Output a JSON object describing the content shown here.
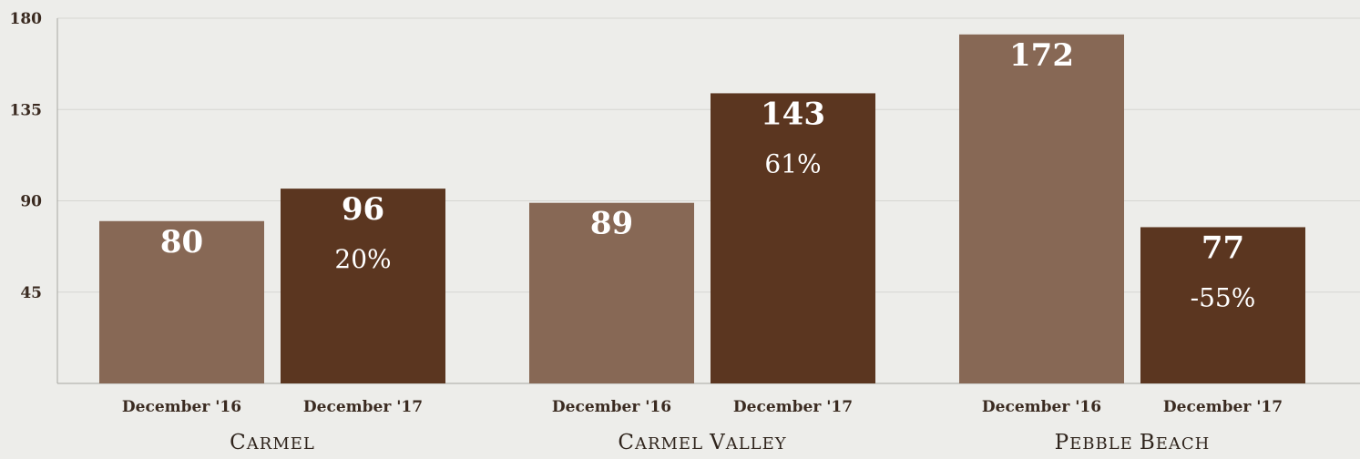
{
  "chart_data": {
    "type": "bar",
    "ylim": [
      0,
      180
    ],
    "yticks": [
      45,
      90,
      135,
      180
    ],
    "grid": true,
    "groups": [
      {
        "name": "Carmel",
        "bars": [
          {
            "label": "December '16",
            "value": 80,
            "value_text": "80",
            "pct_text": ""
          },
          {
            "label": "December '17",
            "value": 96,
            "value_text": "96",
            "pct_text": "20%"
          }
        ]
      },
      {
        "name": "Carmel Valley",
        "bars": [
          {
            "label": "December '16",
            "value": 89,
            "value_text": "89",
            "pct_text": ""
          },
          {
            "label": "December '17",
            "value": 143,
            "value_text": "143",
            "pct_text": "61%"
          }
        ]
      },
      {
        "name": "Pebble Beach",
        "bars": [
          {
            "label": "December '16",
            "value": 172,
            "value_text": "172",
            "pct_text": ""
          },
          {
            "label": "December '17",
            "value": 77,
            "value_text": "77",
            "pct_text": "-55%"
          }
        ]
      }
    ],
    "colors": {
      "december_16": "#876855",
      "december_17": "#5b3620",
      "grid": "#d6d6d2",
      "axis": "#a7a7a2"
    }
  }
}
